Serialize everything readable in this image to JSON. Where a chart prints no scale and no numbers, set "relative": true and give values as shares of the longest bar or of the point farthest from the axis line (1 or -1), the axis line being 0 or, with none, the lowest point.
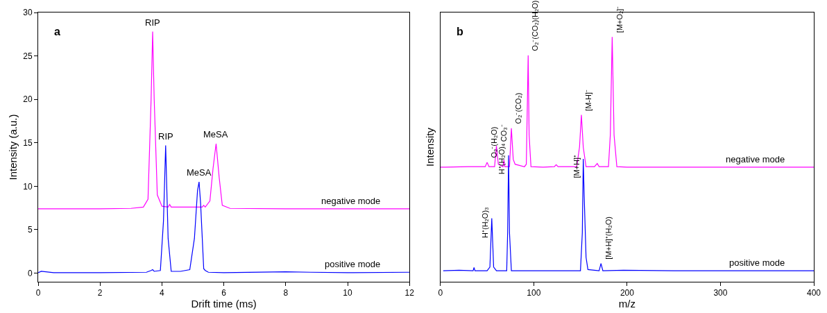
{
  "chart_data": [
    {
      "type": "line",
      "xlabel": "Drift time (ms)",
      "ylabel": "Intensity (a.u.)",
      "xlim": [
        0,
        12
      ],
      "xticks": [
        0,
        2,
        4,
        6,
        8,
        10,
        12
      ],
      "ylim": [
        -1,
        30
      ],
      "yticks": [
        0,
        5,
        10,
        15,
        20,
        25,
        30
      ],
      "legend": false,
      "series": [
        {
          "name": "negative mode",
          "color": "#ff00ff",
          "x": [
            0,
            1,
            2,
            3,
            3.4,
            3.55,
            3.65,
            3.7,
            3.75,
            3.85,
            4.0,
            4.2,
            4.25,
            4.3,
            5,
            5.3,
            5.35,
            5.4,
            5.55,
            5.65,
            5.75,
            5.85,
            5.95,
            6.2,
            8,
            10,
            12
          ],
          "values": [
            7.4,
            7.4,
            7.4,
            7.45,
            7.6,
            8.5,
            20,
            27.8,
            20,
            9,
            7.7,
            7.6,
            7.9,
            7.6,
            7.6,
            7.6,
            7.8,
            7.6,
            8.3,
            12,
            14.9,
            11,
            7.8,
            7.45,
            7.4,
            7.4,
            7.4
          ]
        },
        {
          "name": "positive mode",
          "color": "#0000ff",
          "x": [
            0,
            0.1,
            0.5,
            2,
            3.5,
            3.65,
            3.7,
            3.75,
            3.95,
            4.05,
            4.12,
            4.2,
            4.3,
            4.6,
            4.9,
            5.05,
            5.15,
            5.2,
            5.25,
            5.35,
            5.4,
            5.5,
            6,
            8,
            8.8,
            10,
            12
          ],
          "values": [
            0.05,
            0.2,
            0.05,
            0.05,
            0.1,
            0.3,
            0.4,
            0.2,
            0.3,
            6,
            14.7,
            4,
            0.2,
            0.2,
            0.4,
            4,
            9.5,
            10.5,
            8,
            0.5,
            0.3,
            0.1,
            0.05,
            0.15,
            0.1,
            0.05,
            0.1
          ]
        }
      ],
      "annotations": [
        "a",
        {
          "text": "RIP",
          "x": 3.7,
          "y": 27.8
        },
        {
          "text": "RIP",
          "x": 4.12,
          "y": 14.7
        },
        {
          "text": "MeSA",
          "x": 5.2,
          "y": 10.5
        },
        {
          "text": "MeSA",
          "x": 5.75,
          "y": 14.9
        }
      ]
    },
    {
      "type": "line",
      "relative": true,
      "xlabel": "m/z",
      "ylabel": "Intensity",
      "xlim": [
        0,
        400
      ],
      "xticks": [
        0,
        100,
        200,
        300,
        400
      ],
      "legend": false,
      "series": [
        {
          "name": "negative mode",
          "color": "#ff00ff",
          "x": [
            0,
            5,
            30,
            48,
            50,
            52,
            58,
            60,
            62,
            67,
            68,
            69,
            74,
            76,
            78,
            80,
            90,
            92,
            93,
            94,
            95,
            97,
            110,
            122,
            124,
            126,
            146,
            149,
            151,
            153,
            156,
            165,
            168,
            170,
            180,
            182,
            184,
            186,
            189,
            200,
            300,
            400
          ],
          "values": [
            0.468,
            0.468,
            0.47,
            0.47,
            0.488,
            0.47,
            0.47,
            0.555,
            0.48,
            0.47,
            0.498,
            0.47,
            0.47,
            0.627,
            0.5,
            0.48,
            0.47,
            0.48,
            0.7,
            0.925,
            0.6,
            0.47,
            0.468,
            0.47,
            0.478,
            0.47,
            0.47,
            0.55,
            0.682,
            0.55,
            0.47,
            0.47,
            0.483,
            0.47,
            0.47,
            0.6,
            1.0,
            0.6,
            0.47,
            0.468,
            0.468,
            0.468
          ]
        },
        {
          "name": "positive mode",
          "color": "#0000ff",
          "x": [
            3,
            20,
            35,
            36,
            37,
            50,
            53,
            55,
            57,
            60,
            71,
            72,
            73,
            74,
            76,
            100,
            150,
            152,
            153,
            154,
            156,
            158,
            170,
            172,
            174,
            196,
            250,
            400
          ],
          "values": [
            0.045,
            0.047,
            0.045,
            0.058,
            0.045,
            0.045,
            0.06,
            0.259,
            0.06,
            0.045,
            0.045,
            0.2,
            0.517,
            0.2,
            0.045,
            0.045,
            0.045,
            0.2,
            0.502,
            0.35,
            0.1,
            0.05,
            0.045,
            0.075,
            0.045,
            0.047,
            0.045,
            0.045
          ]
        }
      ],
      "annotations": [
        "b",
        {
          "text": "O₂⁻(H₂O)",
          "x": 50,
          "y": 0.488
        },
        {
          "text": "CO₃⁻",
          "x": 60,
          "y": 0.555
        },
        {
          "text": "O₂⁻(CO₂)",
          "x": 76,
          "y": 0.627
        },
        {
          "text": "O₂⁻(CO₂)(H₂O)",
          "x": 94,
          "y": 0.925
        },
        {
          "text": "[M-H]⁻",
          "x": 151,
          "y": 0.682
        },
        {
          "text": "[M+O₂]⁻",
          "x": 184,
          "y": 1.0
        },
        {
          "text": "H⁺(H₂O)₃",
          "x": 55,
          "y": 0.259
        },
        {
          "text": "H⁺(H₂O)₄",
          "x": 73,
          "y": 0.517
        },
        {
          "text": "[M+H]⁺",
          "x": 153,
          "y": 0.502
        },
        {
          "text": "[M+H]⁺(H₂O)",
          "x": 172,
          "y": 0.075
        }
      ]
    }
  ]
}
